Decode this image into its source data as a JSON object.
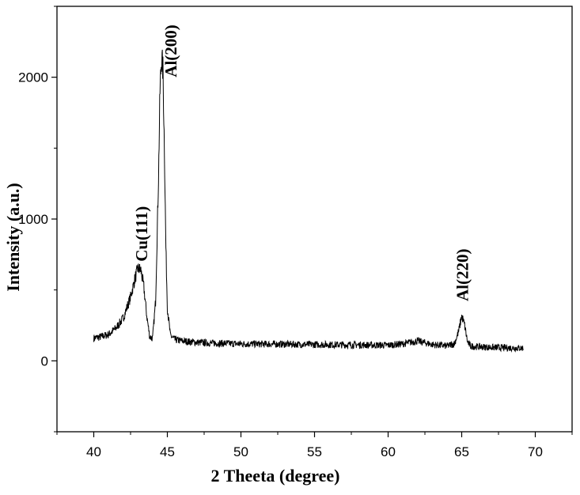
{
  "chart_data": {
    "type": "line",
    "title": "",
    "xlabel": "2 Theeta (degree)",
    "ylabel": "Intensity (a.u.)",
    "xlim": [
      37.5,
      72.5
    ],
    "ylim": [
      -500,
      2500
    ],
    "x_ticks": [
      40,
      45,
      50,
      55,
      60,
      65,
      70
    ],
    "x_tick_labels": [
      "40",
      "45",
      "50",
      "55",
      "60",
      "65",
      "70"
    ],
    "y_ticks": [
      0,
      1000,
      2000
    ],
    "y_tick_labels": [
      "0",
      "1000",
      "2000"
    ],
    "grid": false,
    "legend": "none",
    "line_color": "#000000",
    "series": [
      {
        "x": [
          40.0,
          40.5,
          41.0,
          41.5,
          42.0,
          42.5,
          42.8,
          43.0,
          43.2,
          43.4,
          43.6,
          43.8,
          44.0,
          44.2,
          44.4,
          44.5,
          44.6,
          44.7,
          44.8,
          44.9,
          45.0,
          45.2,
          45.5,
          46.0,
          47.0,
          48.0,
          50.0,
          52.0,
          55.0,
          58.0,
          60.0,
          61.0,
          62.0,
          63.0,
          64.0,
          64.5,
          64.8,
          65.0,
          65.2,
          65.4,
          65.6,
          66.0,
          67.0,
          68.0,
          69.2
        ],
        "y": [
          160,
          170,
          185,
          230,
          300,
          450,
          580,
          650,
          640,
          520,
          320,
          170,
          160,
          420,
          1300,
          1900,
          2140,
          2050,
          1500,
          800,
          380,
          180,
          150,
          140,
          130,
          125,
          120,
          118,
          115,
          112,
          110,
          120,
          140,
          115,
          105,
          120,
          210,
          320,
          250,
          130,
          105,
          100,
          95,
          92,
          90
        ]
      }
    ],
    "annotations": [
      {
        "text": "Cu(111)",
        "x": 43.2,
        "y": 700
      },
      {
        "text": "Al(200)",
        "x": 45.3,
        "y": 2000
      },
      {
        "text": "Al(220)",
        "x": 65.0,
        "y": 420
      }
    ]
  }
}
